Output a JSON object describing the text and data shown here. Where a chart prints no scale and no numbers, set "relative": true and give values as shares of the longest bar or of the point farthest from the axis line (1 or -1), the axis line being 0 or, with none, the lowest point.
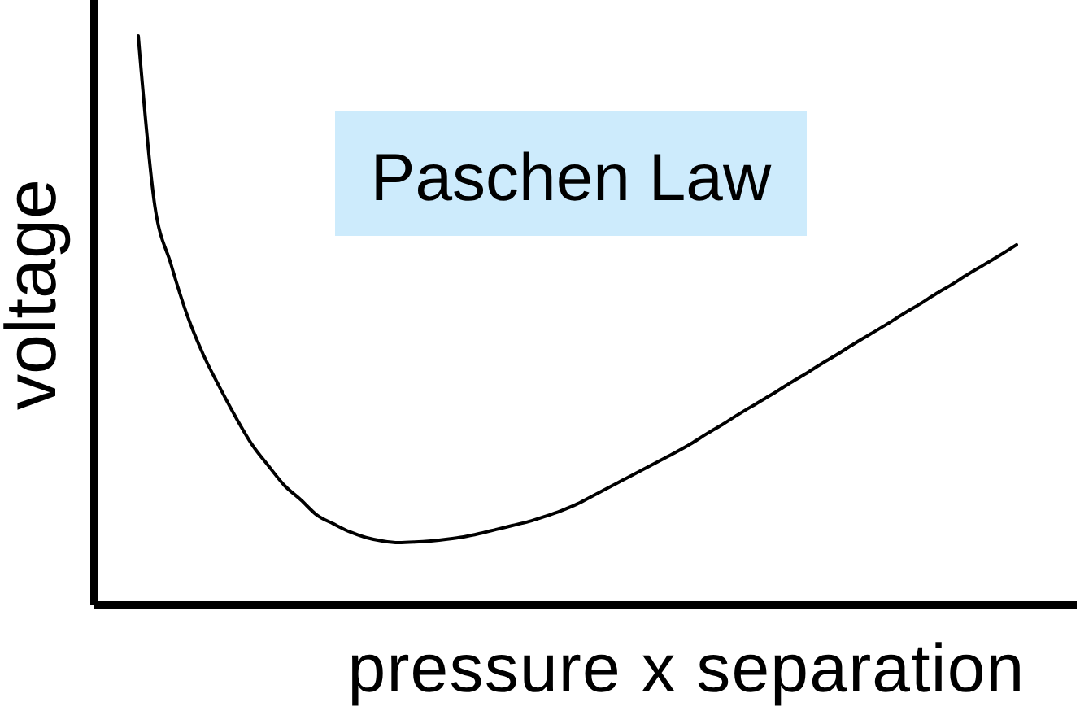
{
  "chart_data": {
    "type": "line",
    "title": "Paschen Law",
    "xlabel": "pressure x separation",
    "ylabel": "voltage",
    "relative": true,
    "marker": "none",
    "categories": [
      null,
      null,
      null,
      null,
      null,
      null,
      null,
      null,
      null,
      null,
      null,
      null,
      null,
      null,
      null,
      null,
      null,
      null,
      null,
      null,
      null,
      null,
      null,
      null,
      null,
      null,
      null,
      null,
      null,
      null,
      null,
      null,
      null,
      null,
      null,
      null,
      null,
      null,
      null,
      null,
      null,
      null,
      null,
      null,
      null,
      null,
      null,
      null,
      null,
      null,
      null,
      null,
      null,
      null,
      null
    ],
    "series": [
      {
        "color": "#000000",
        "values": [
          1.0,
          0.705,
          0.6,
          0.51,
          0.44,
          0.383,
          0.33,
          0.282,
          0.245,
          0.21,
          0.185,
          0.158,
          0.143,
          0.129,
          0.119,
          0.113,
          0.11,
          0.111,
          0.113,
          0.116,
          0.12,
          0.126,
          0.133,
          0.14,
          0.147,
          0.156,
          0.166,
          0.178,
          0.193,
          0.208,
          0.223,
          0.238,
          0.253,
          0.268,
          0.284,
          0.302,
          0.319,
          0.337,
          0.354,
          0.371,
          0.389,
          0.406,
          0.424,
          0.441,
          0.459,
          0.476,
          0.493,
          0.511,
          0.528,
          0.546,
          0.563,
          0.581,
          0.598,
          0.615,
          0.633
        ]
      }
    ]
  }
}
